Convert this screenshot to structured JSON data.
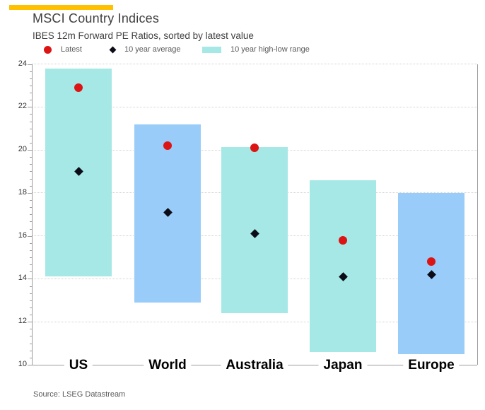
{
  "header": {
    "title": "MSCI Country Indices",
    "subtitle": "IBES 12m Forward PE Ratios, sorted by latest value"
  },
  "legend": [
    {
      "label": "Latest",
      "marker": "red-circle-icon",
      "color": "#dc1414"
    },
    {
      "label": "10 year average",
      "marker": "black-diamond-icon",
      "color": "#0c0c18"
    },
    {
      "label": "10 year high-low range",
      "marker": "range-swatch-icon",
      "color": "#a5e8e5"
    }
  ],
  "chart_data": {
    "type": "bar",
    "subtype": "floating-range-bars-with-point-markers",
    "title": "MSCI Country Indices",
    "subtitle": "IBES 12m Forward PE Ratios, sorted by latest value",
    "categories": [
      "US",
      "World",
      "Australia",
      "Japan",
      "Europe"
    ],
    "series": [
      {
        "name": "Latest",
        "marker": "red-circle",
        "values": [
          22.9,
          20.2,
          20.1,
          15.8,
          14.8
        ]
      },
      {
        "name": "10 year average",
        "marker": "black-diamond",
        "values": [
          19.0,
          17.1,
          16.1,
          14.1,
          14.2
        ]
      },
      {
        "name": "10 year high-low range",
        "marker": "range-bar",
        "low": [
          14.1,
          12.9,
          12.4,
          10.6,
          10.5
        ],
        "high": [
          23.8,
          21.2,
          20.15,
          18.6,
          18.0
        ]
      }
    ],
    "bar_colors": [
      "#a5e8e5",
      "#99ccf9",
      "#a5e8e5",
      "#a5e8e5",
      "#99ccf9"
    ],
    "ylim": [
      10,
      24
    ],
    "yticks": [
      10,
      12,
      14,
      16,
      18,
      20,
      22,
      24
    ],
    "xlabel": "",
    "ylabel": "",
    "grid": "dotted-horizontal",
    "legend_position": "top-left"
  },
  "footer": {
    "source": "Source: LSEG Datastream"
  },
  "colors": {
    "accent_bar": "#ffc000",
    "latest_marker": "#dc1414",
    "average_marker": "#0c0c18",
    "range_cyan": "#a5e8e5",
    "range_blue": "#99ccf9",
    "axis": "#9c9c9c",
    "gridline": "#d2d2d2",
    "title_text": "#404040",
    "tick_text": "#333333",
    "muted_text": "#595959",
    "x_label_text": "#000000"
  }
}
